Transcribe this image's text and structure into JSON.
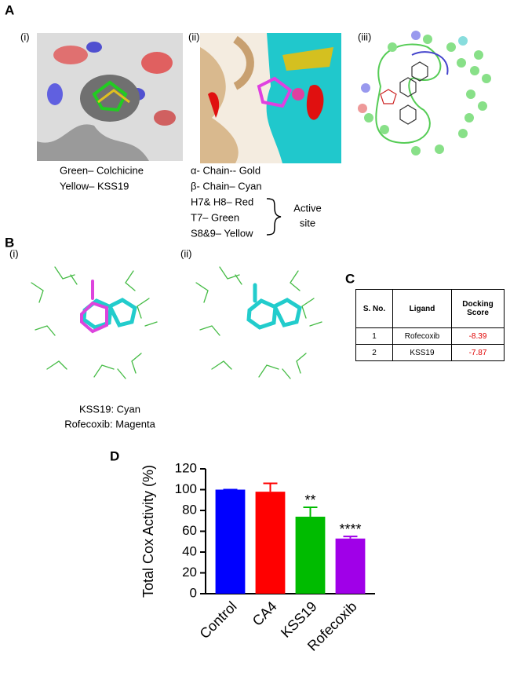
{
  "panel_a": {
    "label": "A",
    "sub_labels": [
      "(i)",
      "(ii)",
      "(iii)"
    ],
    "caption_i": [
      "Green– Colchicine",
      "Yellow– KSS19"
    ],
    "caption_ii": [
      "α- Chain-- Gold",
      "β- Chain– Cyan",
      "H7& H8– Red",
      "T7– Green",
      "S8&9– Yellow"
    ],
    "bracket_label": [
      "Active",
      "site"
    ]
  },
  "panel_b": {
    "label": "B",
    "sub_labels": [
      "(i)",
      "(ii)"
    ],
    "caption": [
      "KSS19: Cyan",
      "Rofecoxib: Magenta"
    ]
  },
  "panel_c": {
    "label": "C",
    "table": {
      "headers": [
        "S. No.",
        "Ligand",
        "Docking Score"
      ],
      "rows": [
        [
          "1",
          "Rofecoxib",
          "-8.39"
        ],
        [
          "2",
          "KSS19",
          "-7.87"
        ]
      ]
    }
  },
  "chart_data": {
    "type": "bar",
    "panel_label": "D",
    "y_label": "Total Cox Activity (%)",
    "categories": [
      "Control",
      "CA4",
      "KSS19",
      "Rofecoxib"
    ],
    "values": [
      100,
      98,
      74,
      53
    ],
    "errors": [
      0,
      8,
      9,
      2
    ],
    "colors": [
      "#0000ff",
      "#ff0000",
      "#00bb00",
      "#a000e8"
    ],
    "ylim": [
      0,
      120
    ],
    "yticks": [
      0,
      20,
      40,
      60,
      80,
      100,
      120
    ],
    "annotations": [
      {
        "category": "KSS19",
        "text": "**"
      },
      {
        "category": "Rofecoxib",
        "text": "****"
      }
    ]
  }
}
